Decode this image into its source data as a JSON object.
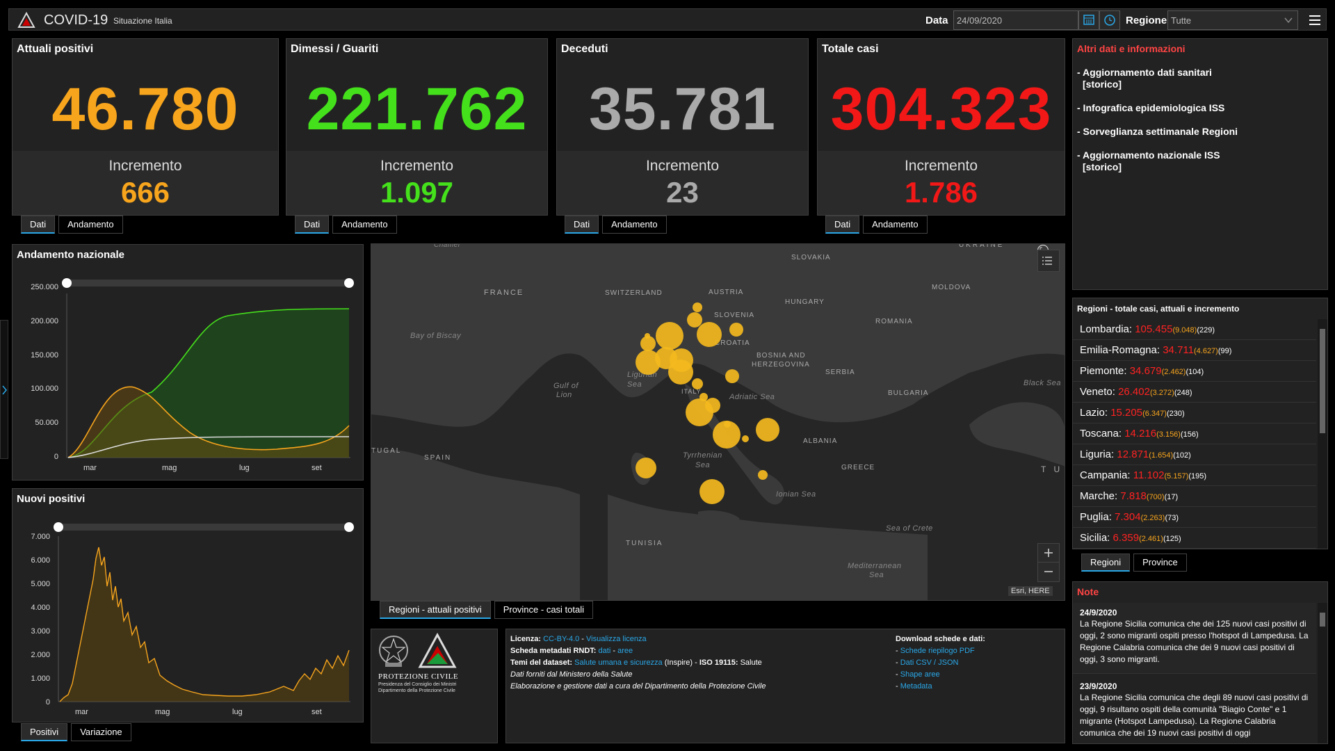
{
  "header": {
    "title": "COVID-19",
    "subtitle": "Situazione Italia",
    "date_label": "Data",
    "date_value": "24/09/2020",
    "region_label": "Regione",
    "region_value": "Tutte"
  },
  "kpis": [
    {
      "title": "Attuali positivi",
      "value": "46.780",
      "inc_label": "Incremento",
      "inc_value": "666",
      "color": "#f7a51d"
    },
    {
      "title": "Dimessi / Guariti",
      "value": "221.762",
      "inc_label": "Incremento",
      "inc_value": "1.097",
      "color": "#45e01c"
    },
    {
      "title": "Deceduti",
      "value": "35.781",
      "inc_label": "Incremento",
      "inc_value": "23",
      "color": "#aaaaaa"
    },
    {
      "title": "Totale casi",
      "value": "304.323",
      "inc_label": "Incremento",
      "inc_value": "1.786",
      "color": "#f21818"
    }
  ],
  "kpi_tabs": {
    "dati": "Dati",
    "andamento": "Andamento"
  },
  "info": {
    "title": "Altri dati e informazioni",
    "items": [
      "- Aggiornamento dati sanitari",
      "[storico]",
      "- Infografica epidemiologica ISS",
      "- Sorveglianza settimanale Regioni",
      "- Aggiornamento nazionale ISS",
      "[storico]"
    ]
  },
  "charts": {
    "national": {
      "title": "Andamento nazionale",
      "yticks": [
        "250.000",
        "200.000",
        "150.000",
        "100.000",
        "50.000",
        "0"
      ],
      "xticks": [
        "mar",
        "mag",
        "lug",
        "set"
      ]
    },
    "daily": {
      "title": "Nuovi positivi",
      "yticks": [
        "7.000",
        "6.000",
        "5.000",
        "4.000",
        "3.000",
        "2.000",
        "1.000",
        "0"
      ],
      "xticks": [
        "mar",
        "mag",
        "lug",
        "set"
      ]
    },
    "national_tabs": {
      "a": "Positivi",
      "b": "Variazione"
    }
  },
  "map": {
    "countries": [
      "FRANCE",
      "SWITZERLAND",
      "AUSTRIA",
      "SLOVENIA",
      "HUNGARY",
      "CROATIA",
      "BOSNIA AND",
      "HERZEGOVINA",
      "SERBIA",
      "ROMANIA",
      "BULGARIA",
      "ALBANIA",
      "GREECE",
      "SLOVAKIA",
      "MOLDOVA",
      "UKRAINE",
      "SPAIN",
      "TUNISIA",
      "TUGAL",
      "T U",
      "ITALY",
      "Chamel"
    ],
    "seas": [
      "Bay of Biscay",
      "Gulf of",
      "Lion",
      "Ligurian",
      "Sea",
      "Adriatic Sea",
      "Tyrrhenian",
      "Sea",
      "Ionian Sea",
      "Black Sea",
      "Sea of Crete",
      "Mediterranean",
      "Sea"
    ],
    "attribution": "Esri, HERE",
    "tabs": {
      "a": "Regioni - attuali positivi",
      "b": "Province - casi totali"
    }
  },
  "regions": {
    "title": "Regioni - totale casi, attuali e incremento",
    "rows": [
      {
        "name": "Lombardia:",
        "tot": "105.455",
        "act": "(9.048)",
        "inc": "(229)"
      },
      {
        "name": "Emilia-Romagna:",
        "tot": "34.711",
        "act": "(4.627)",
        "inc": "(99)"
      },
      {
        "name": "Piemonte:",
        "tot": "34.679",
        "act": "(2.462)",
        "inc": "(104)"
      },
      {
        "name": "Veneto:",
        "tot": "26.402",
        "act": "(3.272)",
        "inc": "(248)"
      },
      {
        "name": "Lazio:",
        "tot": "15.205",
        "act": "(6.347)",
        "inc": "(230)"
      },
      {
        "name": "Toscana:",
        "tot": "14.216",
        "act": "(3.156)",
        "inc": "(156)"
      },
      {
        "name": "Liguria:",
        "tot": "12.871",
        "act": "(1.654)",
        "inc": "(102)"
      },
      {
        "name": "Campania:",
        "tot": "11.102",
        "act": "(5.157)",
        "inc": "(195)"
      },
      {
        "name": "Marche:",
        "tot": "7.818",
        "act": "(700)",
        "inc": "(17)"
      },
      {
        "name": "Puglia:",
        "tot": "7.304",
        "act": "(2.263)",
        "inc": "(73)"
      },
      {
        "name": "Sicilia:",
        "tot": "6.359",
        "act": "(2.461)",
        "inc": "(125)"
      }
    ],
    "tabs": {
      "a": "Regioni",
      "b": "Province"
    }
  },
  "notes": {
    "title": "Note",
    "items": [
      {
        "date": "24/9/2020",
        "text": "La Regione Sicilia comunica che dei 125 nuovi casi positivi di oggi, 2 sono migranti ospiti presso l'hotspot di Lampedusa. La Regione Calabria comunica che dei 9 nuovi casi positivi di oggi, 3 sono migranti."
      },
      {
        "date": "23/9/2020",
        "text": "La Regione Sicilia comunica che degli 89 nuovi casi positivi di oggi, 9 risultano ospiti della comunità \"Biagio Conte\" e 1 migrante (Hotspot Lampedusa). La Regione Calabria comunica che dei 19 nuovi casi positivi di oggi"
      }
    ]
  },
  "logo": {
    "org": "PROTEZIONE CIVILE",
    "sub1": "Presidenza del Consiglio dei Ministri",
    "sub2": "Dipartimento della Protezione Civile"
  },
  "license": {
    "l1a": "Licenza:",
    "l1b": "CC-BY-4.0",
    "l1c": " - ",
    "l1d": "Visualizza licenza",
    "l2a": "Scheda metadati RNDT:",
    "l2b": "dati",
    "l2c": " - ",
    "l2d": "aree",
    "l3a": "Temi del dataset:",
    "l3b": "Salute umana e sicurezza",
    "l3c": " (Inspire) - ",
    "l3d": "ISO 19115:",
    "l3e": " Salute",
    "l4": "Dati forniti dal Ministero della Salute",
    "l5": "Elaborazione e gestione dati a cura del Dipartimento della Protezione Civile",
    "dl_title": "Download schede e dati:",
    "dl": [
      "Schede riepilogo PDF",
      "Dati CSV / JSON",
      "Shape aree",
      "Metadata"
    ]
  }
}
